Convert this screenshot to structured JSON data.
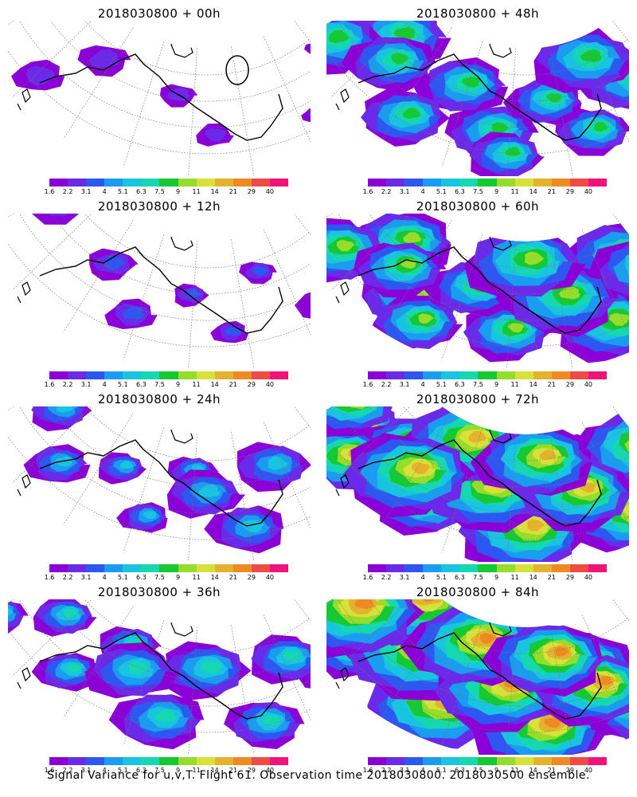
{
  "panels": [
    {
      "title": "2018030800 + 00h",
      "hour": 0
    },
    {
      "title": "2018030800 + 48h",
      "hour": 48
    },
    {
      "title": "2018030800 + 12h",
      "hour": 12
    },
    {
      "title": "2018030800 + 60h",
      "hour": 60
    },
    {
      "title": "2018030800 + 24h",
      "hour": 24
    },
    {
      "title": "2018030800 + 72h",
      "hour": 72
    },
    {
      "title": "2018030800 + 36h",
      "hour": 36
    },
    {
      "title": "2018030800 + 84h",
      "hour": 84
    }
  ],
  "colorbar": {
    "labels": [
      "1.6",
      "2.2",
      "3.1",
      "4",
      "5.1",
      "6.3",
      "7.5",
      "9",
      "11",
      "14",
      "21",
      "29",
      "40"
    ],
    "colors": [
      "#8a00d6",
      "#6a2ae8",
      "#2e56f0",
      "#1a9cf0",
      "#18c4e0",
      "#16d8b0",
      "#16c832",
      "#96dc2a",
      "#d8e03a",
      "#e4b22c",
      "#ee8a22",
      "#f04a46",
      "#f0147a"
    ]
  },
  "footer": "Signal Variance for u,v,T. Flight 61. Observation time 2018030800. 2018030500 ensemble."
}
